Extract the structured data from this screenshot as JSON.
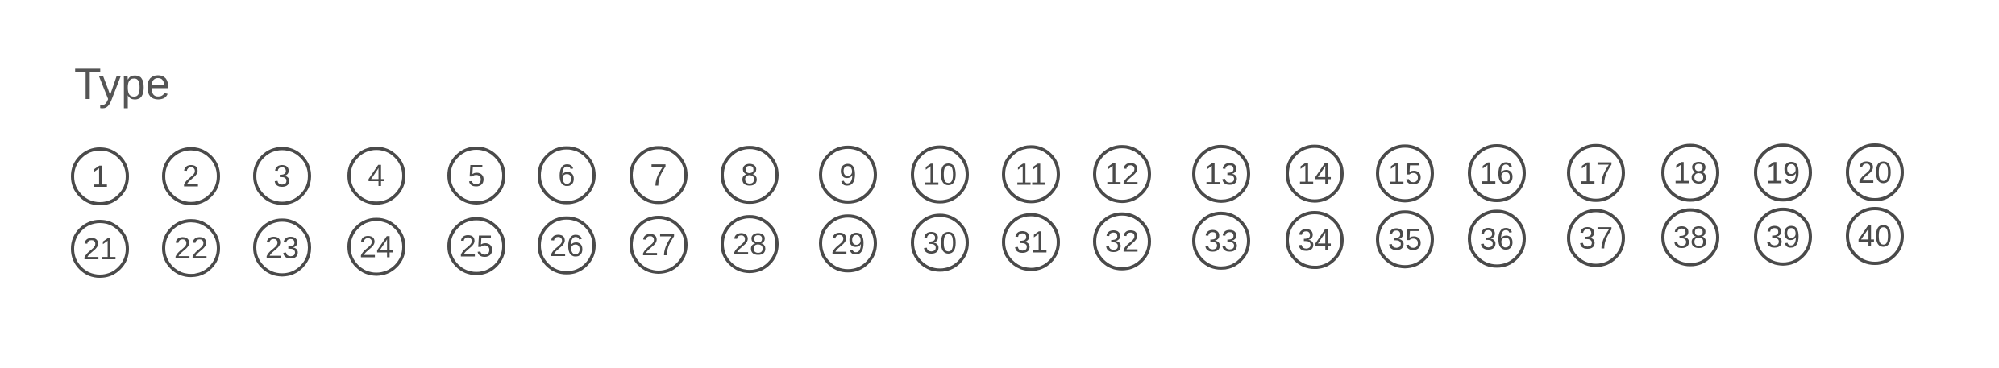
{
  "title": "Type",
  "badges": [
    "1",
    "2",
    "3",
    "4",
    "5",
    "6",
    "7",
    "8",
    "9",
    "10",
    "11",
    "12",
    "13",
    "14",
    "15",
    "16",
    "17",
    "18",
    "19",
    "20",
    "21",
    "22",
    "23",
    "24",
    "25",
    "26",
    "27",
    "28",
    "29",
    "30",
    "31",
    "32",
    "33",
    "34",
    "35",
    "36",
    "37",
    "38",
    "39",
    "40"
  ],
  "colors": {
    "ink": "#4a4a4a",
    "title": "#555555",
    "background": "#ffffff"
  }
}
